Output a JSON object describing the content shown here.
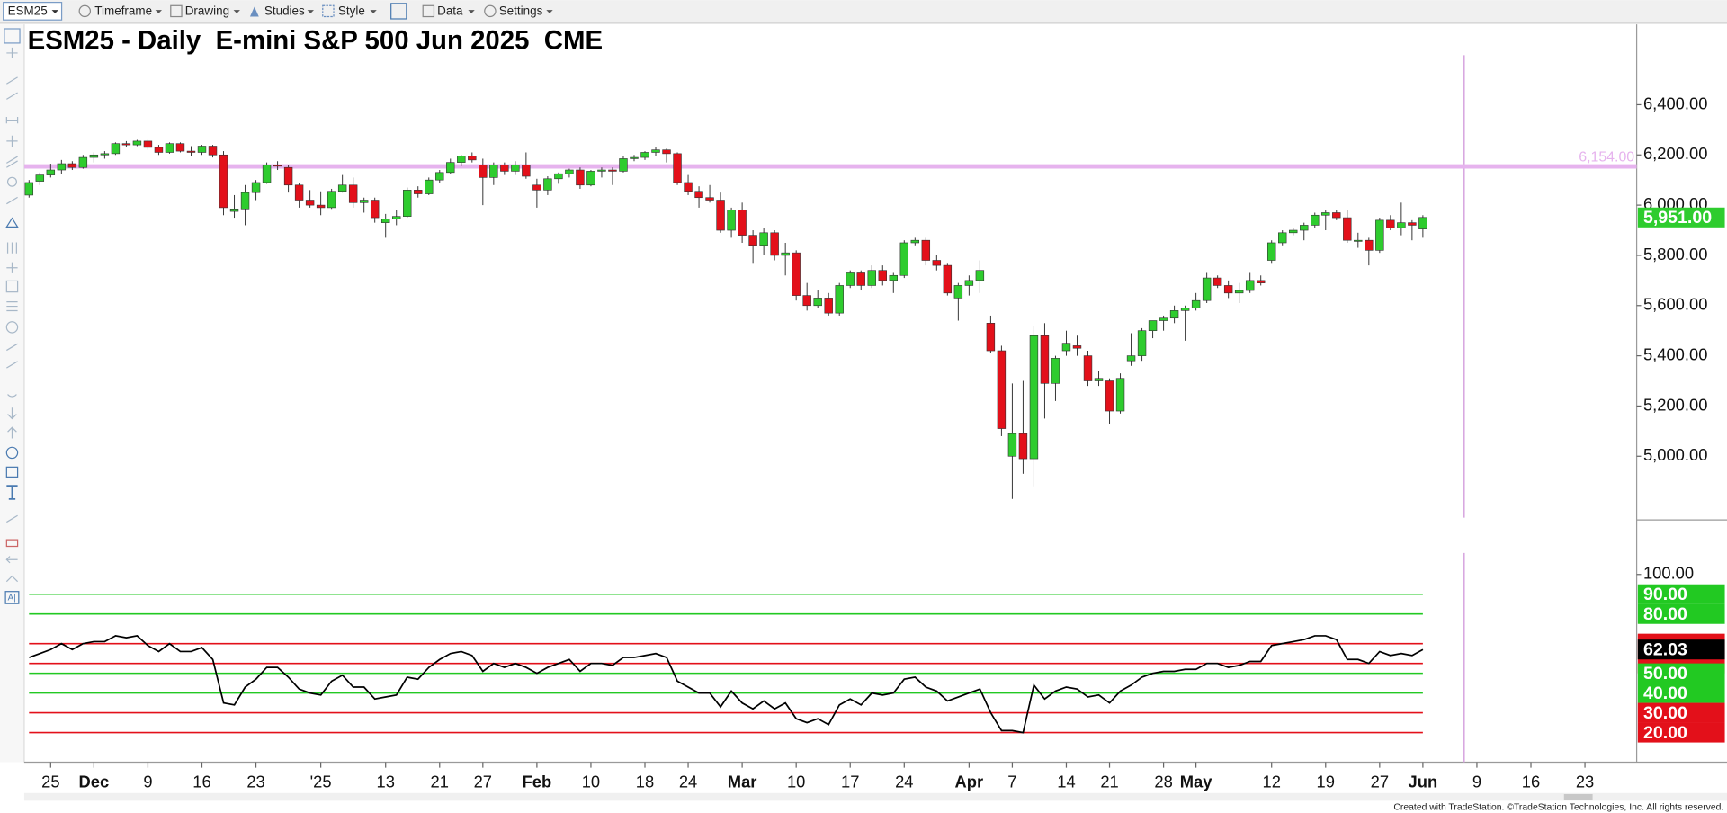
{
  "toolbar": {
    "symbol": "ESM25",
    "menus": [
      "Timeframe",
      "Drawing",
      "Studies",
      "Style",
      "Data",
      "Settings"
    ]
  },
  "footer": "Created with TradeStation. ©TradeStation Technologies, Inc. All rights reserved.",
  "chart_data": [
    {
      "type": "candlestick",
      "title": "ESM25 - Daily  E-mini S&P 500 Jun 2025  CME",
      "up_color": "#2ecc2e",
      "down_color": "#e3101a",
      "ylim": [
        4755,
        6720
      ],
      "yticks": [
        {
          "value": 5000,
          "label": "5,000.00"
        },
        {
          "value": 5200,
          "label": "5,200.00"
        },
        {
          "value": 5400,
          "label": "5,400.00"
        },
        {
          "value": 5600,
          "label": "5,600.00"
        },
        {
          "value": 5800,
          "label": "5,800.00"
        },
        {
          "value": 6000,
          "label": "6,000.00"
        },
        {
          "value": 6200,
          "label": "6,200.00"
        },
        {
          "value": 6400,
          "label": "6,400.00"
        }
      ],
      "hlines": [
        {
          "value": 6154,
          "label": "6,154.00",
          "color": "#e6b3ee"
        }
      ],
      "last_value_label": "5,951.00",
      "open": [
        6040,
        6095,
        6120,
        6140,
        6165,
        6150,
        6190,
        6200,
        6205,
        6245,
        6240,
        6255,
        6230,
        6210,
        6245,
        6215,
        6210,
        6235,
        6200,
        5975,
        5985,
        6050,
        6090,
        6160,
        6150,
        6080,
        6020,
        6000,
        5990,
        6055,
        6080,
        6010,
        6020,
        5930,
        5945,
        5955,
        6060,
        6045,
        6100,
        6130,
        6170,
        6195,
        6160,
        6110,
        6160,
        6135,
        6160,
        6080,
        6060,
        6105,
        6125,
        6140,
        6080,
        6135,
        6140,
        6135,
        6185,
        6190,
        6210,
        6220,
        6205,
        6090,
        6055,
        6030,
        6020,
        5900,
        5980,
        5880,
        5840,
        5890,
        5800,
        5810,
        5640,
        5600,
        5630,
        5570,
        5680,
        5730,
        5680,
        5740,
        5700,
        5720,
        5850,
        5860,
        5780,
        5760,
        5630,
        5680,
        5700,
        5530,
        5420,
        5000,
        5090,
        4990,
        5480,
        5290,
        5420,
        5440,
        5400,
        5300,
        5300,
        5180,
        5380,
        5400,
        5500,
        5540,
        5550,
        5580,
        5590,
        5620,
        5710,
        5680,
        5650,
        5660,
        5700,
        5780,
        5850,
        5890,
        5900,
        5920,
        5960,
        5970,
        5950,
        5860,
        5860,
        5820,
        5940,
        5910,
        5930,
        5905,
        null,
        null,
        null,
        null,
        null,
        null,
        null,
        null,
        null,
        null,
        null,
        null,
        null,
        null,
        null
      ],
      "high": [
        6100,
        6130,
        6165,
        6180,
        6175,
        6200,
        6210,
        6215,
        6250,
        6255,
        6260,
        6260,
        6240,
        6250,
        6250,
        6235,
        6240,
        6240,
        6215,
        6040,
        6080,
        6100,
        6170,
        6175,
        6160,
        6090,
        6060,
        6055,
        6065,
        6120,
        6110,
        6030,
        6030,
        5965,
        5980,
        6070,
        6075,
        6110,
        6140,
        6185,
        6200,
        6210,
        6185,
        6170,
        6170,
        6175,
        6210,
        6105,
        6115,
        6130,
        6145,
        6150,
        6140,
        6150,
        6150,
        6195,
        6200,
        6215,
        6230,
        6225,
        6210,
        6120,
        6075,
        6080,
        6050,
        5990,
        6010,
        5900,
        5910,
        5900,
        5850,
        5820,
        5690,
        5660,
        5650,
        5690,
        5740,
        5740,
        5760,
        5760,
        5730,
        5860,
        5870,
        5870,
        5800,
        5770,
        5690,
        5720,
        5780,
        5560,
        5440,
        5290,
        5300,
        5520,
        5530,
        5400,
        5500,
        5480,
        5420,
        5340,
        5310,
        5330,
        5490,
        5510,
        5540,
        5560,
        5600,
        5600,
        5650,
        5730,
        5720,
        5700,
        5690,
        5730,
        5720,
        5860,
        5900,
        5910,
        5930,
        5970,
        5980,
        5980,
        5980,
        5890,
        5870,
        5950,
        5960,
        6010,
        5940,
        5960,
        null,
        null,
        null,
        null,
        null,
        null,
        null,
        null,
        null,
        null,
        null,
        null,
        null,
        null,
        null
      ],
      "low": [
        6030,
        6080,
        6110,
        6125,
        6140,
        6145,
        6170,
        6185,
        6200,
        6230,
        6235,
        6220,
        6200,
        6205,
        6210,
        6195,
        6200,
        6190,
        5960,
        5950,
        5920,
        6020,
        6085,
        6140,
        6050,
        5990,
        5990,
        5960,
        5985,
        6050,
        5990,
        5970,
        5930,
        5870,
        5920,
        5950,
        6030,
        6040,
        6090,
        6125,
        6155,
        6170,
        6000,
        6080,
        6120,
        6120,
        6105,
        5990,
        6040,
        6085,
        6110,
        6065,
        6075,
        6110,
        6080,
        6130,
        6175,
        6180,
        6195,
        6170,
        6080,
        6040,
        5990,
        6010,
        5890,
        5870,
        5850,
        5770,
        5800,
        5780,
        5720,
        5620,
        5580,
        5590,
        5560,
        5560,
        5670,
        5660,
        5670,
        5680,
        5650,
        5710,
        5840,
        5760,
        5740,
        5640,
        5540,
        5640,
        5650,
        5410,
        5080,
        4830,
        4930,
        4880,
        5150,
        5220,
        5400,
        5400,
        5280,
        5280,
        5130,
        5170,
        5360,
        5380,
        5470,
        5500,
        5530,
        5460,
        5580,
        5610,
        5670,
        5630,
        5610,
        5650,
        5680,
        5770,
        5840,
        5880,
        5860,
        5910,
        5900,
        5940,
        5850,
        5830,
        5760,
        5810,
        5900,
        5880,
        5860,
        5870,
        null,
        null,
        null,
        null,
        null,
        null,
        null,
        null,
        null,
        null,
        null,
        null,
        null,
        null,
        null
      ],
      "close": [
        6090,
        6120,
        6140,
        6165,
        6150,
        6190,
        6200,
        6205,
        6245,
        6240,
        6255,
        6230,
        6210,
        6245,
        6215,
        6210,
        6235,
        6200,
        5990,
        5985,
        6050,
        6090,
        6160,
        6155,
        6080,
        6020,
        6000,
        5990,
        6055,
        6080,
        6010,
        6020,
        5950,
        5945,
        5955,
        6060,
        6045,
        6100,
        6130,
        6170,
        6195,
        6180,
        6110,
        6160,
        6135,
        6160,
        6115,
        6060,
        6105,
        6125,
        6140,
        6080,
        6135,
        6140,
        6135,
        6185,
        6190,
        6210,
        6220,
        6205,
        6090,
        6055,
        6030,
        6020,
        5900,
        5980,
        5880,
        5840,
        5890,
        5800,
        5810,
        5640,
        5600,
        5630,
        5570,
        5680,
        5730,
        5680,
        5740,
        5700,
        5720,
        5850,
        5860,
        5780,
        5760,
        5650,
        5680,
        5700,
        5740,
        5420,
        5110,
        5090,
        4990,
        5480,
        5290,
        5390,
        5450,
        5430,
        5300,
        5310,
        5180,
        5310,
        5400,
        5500,
        5540,
        5550,
        5580,
        5590,
        5620,
        5710,
        5680,
        5650,
        5660,
        5700,
        5690,
        5850,
        5890,
        5900,
        5920,
        5960,
        5970,
        5950,
        5860,
        5860,
        5820,
        5940,
        5910,
        5930,
        5920,
        5951,
        null,
        null,
        null,
        null,
        null,
        null,
        null,
        null,
        null,
        null,
        null,
        null,
        null,
        null,
        null
      ]
    },
    {
      "type": "line",
      "color": "#000000",
      "tag_color": "#000000",
      "ylim": [
        5,
        112
      ],
      "yticks": [
        {
          "value": 100,
          "label": "100.00"
        }
      ],
      "levels": [
        {
          "value": 90,
          "label": "90.00",
          "color": "#22c922"
        },
        {
          "value": 80,
          "label": "80.00",
          "color": "#22c922"
        },
        {
          "value": 65,
          "color": "#e3101a"
        },
        {
          "value": 55,
          "color": "#e3101a"
        },
        {
          "value": 50,
          "label": "50.00",
          "color": "#22c922"
        },
        {
          "value": 40,
          "label": "40.00",
          "color": "#22c922"
        },
        {
          "value": 30,
          "label": "30.00",
          "color": "#e3101a"
        },
        {
          "value": 20,
          "label": "20.00",
          "color": "#e3101a"
        }
      ],
      "categories": [
        null,
        null,
        "25",
        null,
        null,
        null,
        "Dec",
        null,
        null,
        null,
        null,
        "9",
        null,
        null,
        null,
        null,
        "16",
        null,
        null,
        null,
        null,
        "23",
        null,
        null,
        null,
        null,
        null,
        "'25",
        null,
        null,
        null,
        null,
        null,
        "13",
        null,
        null,
        null,
        null,
        "21",
        null,
        null,
        null,
        "27",
        null,
        null,
        null,
        null,
        "Feb",
        null,
        null,
        null,
        null,
        "10",
        null,
        null,
        null,
        null,
        "18",
        null,
        null,
        null,
        "24",
        null,
        null,
        null,
        null,
        "Mar",
        null,
        null,
        null,
        null,
        "10",
        null,
        null,
        null,
        null,
        "17",
        null,
        null,
        null,
        null,
        "24",
        null,
        null,
        null,
        null,
        null,
        "Apr",
        null,
        null,
        null,
        "7",
        null,
        null,
        null,
        null,
        "14",
        null,
        null,
        null,
        "21",
        null,
        null,
        null,
        null,
        "28",
        null,
        null,
        "May",
        null,
        null,
        null,
        null,
        null,
        null,
        "12",
        null,
        null,
        null,
        null,
        "19",
        null,
        null,
        null,
        null,
        "27",
        null,
        null,
        null,
        "Jun",
        null,
        null,
        null,
        null,
        "9",
        null,
        null,
        null,
        null,
        "16",
        null,
        null,
        null,
        null,
        "23"
      ],
      "values": [
        58,
        60,
        62,
        65,
        62,
        65,
        66,
        66,
        69,
        68,
        69,
        64,
        61,
        65,
        61,
        61,
        63,
        57,
        35,
        34,
        43,
        47,
        53,
        53,
        48,
        42,
        40,
        39,
        46,
        49,
        43,
        43,
        37,
        38,
        39,
        48,
        47,
        53,
        57,
        60,
        61,
        59,
        51,
        55,
        53,
        55,
        53,
        50,
        53,
        55,
        57,
        51,
        55,
        55,
        54,
        58,
        58,
        59,
        60,
        58,
        46,
        43,
        40,
        40,
        33,
        41,
        35,
        32,
        36,
        32,
        35,
        27,
        25,
        27,
        24,
        34,
        37,
        34,
        40,
        39,
        40,
        47,
        48,
        43,
        41,
        36,
        38,
        40,
        42,
        30,
        21,
        21,
        20,
        44,
        37,
        41,
        43,
        42,
        38,
        39,
        35,
        41,
        44,
        48,
        50,
        51,
        51,
        52,
        52,
        55,
        55,
        53,
        54,
        56,
        56,
        64,
        65,
        66,
        67,
        69,
        69,
        67,
        57,
        57,
        55,
        61,
        59,
        60,
        59,
        62.03,
        null,
        null,
        null,
        null,
        null,
        null,
        null,
        null,
        null,
        null,
        null,
        null,
        null,
        null,
        null
      ]
    }
  ]
}
